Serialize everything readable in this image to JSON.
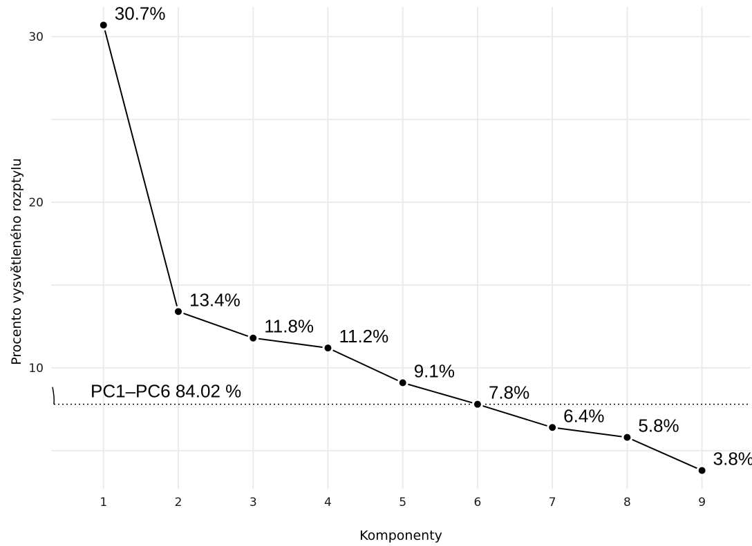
{
  "chart_data": {
    "type": "line",
    "xlabel": "Komponenty",
    "ylabel": "Procento vysvětleného rozptylu",
    "x": [
      1,
      2,
      3,
      4,
      5,
      6,
      7,
      8,
      9
    ],
    "xticks": [
      "1",
      "2",
      "3",
      "4",
      "5",
      "6",
      "7",
      "8",
      "9"
    ],
    "xlim": [
      0.3,
      9.65
    ],
    "ylim": [
      2.7,
      31.8
    ],
    "yticks": [
      10,
      20,
      30
    ],
    "yticks_labels": [
      "10",
      "20",
      "30"
    ],
    "y_minor_gridlines": [
      5,
      15,
      25
    ],
    "series": [
      {
        "values": [
          30.7,
          13.4,
          11.8,
          11.2,
          9.1,
          7.8,
          6.4,
          5.8,
          3.8
        ],
        "labels": [
          "30.7%",
          "13.4%",
          "11.8%",
          "11.2%",
          "9.1%",
          "7.8%",
          "6.4%",
          "5.8%",
          "3.8%"
        ]
      }
    ],
    "reference_line": {
      "y": 7.8,
      "style": "dotted",
      "label": "PC1–PC6 84.02 %"
    },
    "grid": true,
    "legend": "none",
    "colors": {
      "line": "#000000",
      "point": "#000000",
      "grid": "#ebebeb",
      "background": "#ffffff"
    }
  }
}
